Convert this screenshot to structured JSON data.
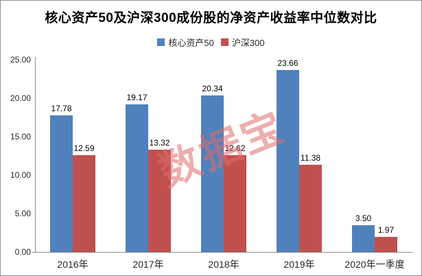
{
  "chart": {
    "title": "核心资产50及沪深300成份股的净资产收益率中位数对比",
    "watermark": "数据宝",
    "watermark_color": "#e06c6c",
    "watermark_opacity": 0.55
  },
  "chart_data": {
    "type": "bar",
    "title": "核心资产50及沪深300成份股的净资产收益率中位数对比",
    "categories": [
      "2016年",
      "2017年",
      "2018年",
      "2019年",
      "2020年一季度"
    ],
    "series": [
      {
        "name": "核心资产50",
        "color": "#4F81BD",
        "values": [
          17.78,
          19.17,
          20.34,
          23.66,
          3.5
        ]
      },
      {
        "name": "沪深300",
        "color": "#C0504D",
        "values": [
          12.59,
          13.32,
          12.62,
          11.38,
          1.97
        ]
      }
    ],
    "xlabel": "",
    "ylabel": "",
    "ylim": [
      0,
      25
    ],
    "ytick_interval": 5,
    "ytick_labels": [
      "0.00",
      "5.00",
      "10.00",
      "15.00",
      "20.00",
      "25.00"
    ],
    "grid": false,
    "legend_position": "top",
    "value_labels": true,
    "value_label_decimals": 2
  }
}
